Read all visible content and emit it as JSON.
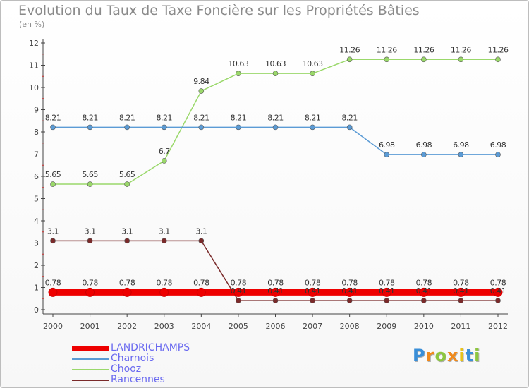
{
  "title": "Evolution du Taux de Taxe Foncière sur les Propriétés Bâties",
  "subtitle": "(en %)",
  "logo": {
    "letters": [
      "P",
      "r",
      "o",
      "x",
      "i",
      "t",
      "i"
    ],
    "colors": [
      "#3a8fd8",
      "#f08a1d",
      "#8dc63f",
      "#f08a1d",
      "#e8c21a",
      "#3a8fd8",
      "#8dc63f"
    ]
  },
  "chart_data": {
    "type": "line",
    "title": "Evolution du Taux de Taxe Foncière sur les Propriétés Bâties",
    "ylabel": "(en %)",
    "categories": [
      "2000",
      "2001",
      "2002",
      "2003",
      "2004",
      "2005",
      "2006",
      "2007",
      "2008",
      "2009",
      "2010",
      "2011",
      "2012"
    ],
    "ylim": [
      0,
      12
    ],
    "yticks": [
      0,
      1,
      2,
      3,
      4,
      5,
      6,
      7,
      8,
      9,
      10,
      11,
      12
    ],
    "grid": false,
    "legend_position": "bottom-left",
    "series": [
      {
        "name": "LANDRICHAMPS",
        "color": "#ee0000",
        "values": [
          0.78,
          0.78,
          0.78,
          0.78,
          0.78,
          0.78,
          0.78,
          0.78,
          0.78,
          0.78,
          0.78,
          0.78,
          0.78
        ],
        "labels": [
          "0.78",
          "0.78",
          "0.78",
          "0.78",
          "0.78",
          "0.78",
          "0.78",
          "0.78",
          "0.78",
          "0.78",
          "0.78",
          "0.78",
          "0.78"
        ]
      },
      {
        "name": "Charnois",
        "color": "#5b9bd5",
        "values": [
          8.21,
          8.21,
          8.21,
          8.21,
          8.21,
          8.21,
          8.21,
          8.21,
          8.21,
          6.98,
          6.98,
          6.98,
          6.98
        ],
        "labels": [
          "8.21",
          "8.21",
          "8.21",
          "8.21",
          "8.21",
          "8.21",
          "8.21",
          "8.21",
          "8.21",
          "6.98",
          "6.98",
          "6.98",
          "6.98"
        ]
      },
      {
        "name": "Chooz",
        "color": "#9ad86a",
        "values": [
          5.65,
          5.65,
          5.65,
          6.7,
          9.84,
          10.63,
          10.63,
          10.63,
          11.26,
          11.26,
          11.26,
          11.26,
          11.26
        ],
        "labels": [
          "5.65",
          "5.65",
          "5.65",
          "6.7",
          "9.84",
          "10.63",
          "10.63",
          "10.63",
          "11.26",
          "11.26",
          "11.26",
          "11.26",
          "11.26"
        ]
      },
      {
        "name": "Rancennes",
        "color": "#7a2a2a",
        "values": [
          3.1,
          3.1,
          3.1,
          3.1,
          3.1,
          0.41,
          0.41,
          0.41,
          0.41,
          0.41,
          0.41,
          0.41,
          0.41
        ],
        "labels": [
          "3.1",
          "3.1",
          "3.1",
          "3.1",
          "3.1",
          "0.41",
          "0.41",
          "0.41",
          "0.41",
          "0.41",
          "0.41",
          "0.41",
          "0.41"
        ]
      }
    ]
  }
}
